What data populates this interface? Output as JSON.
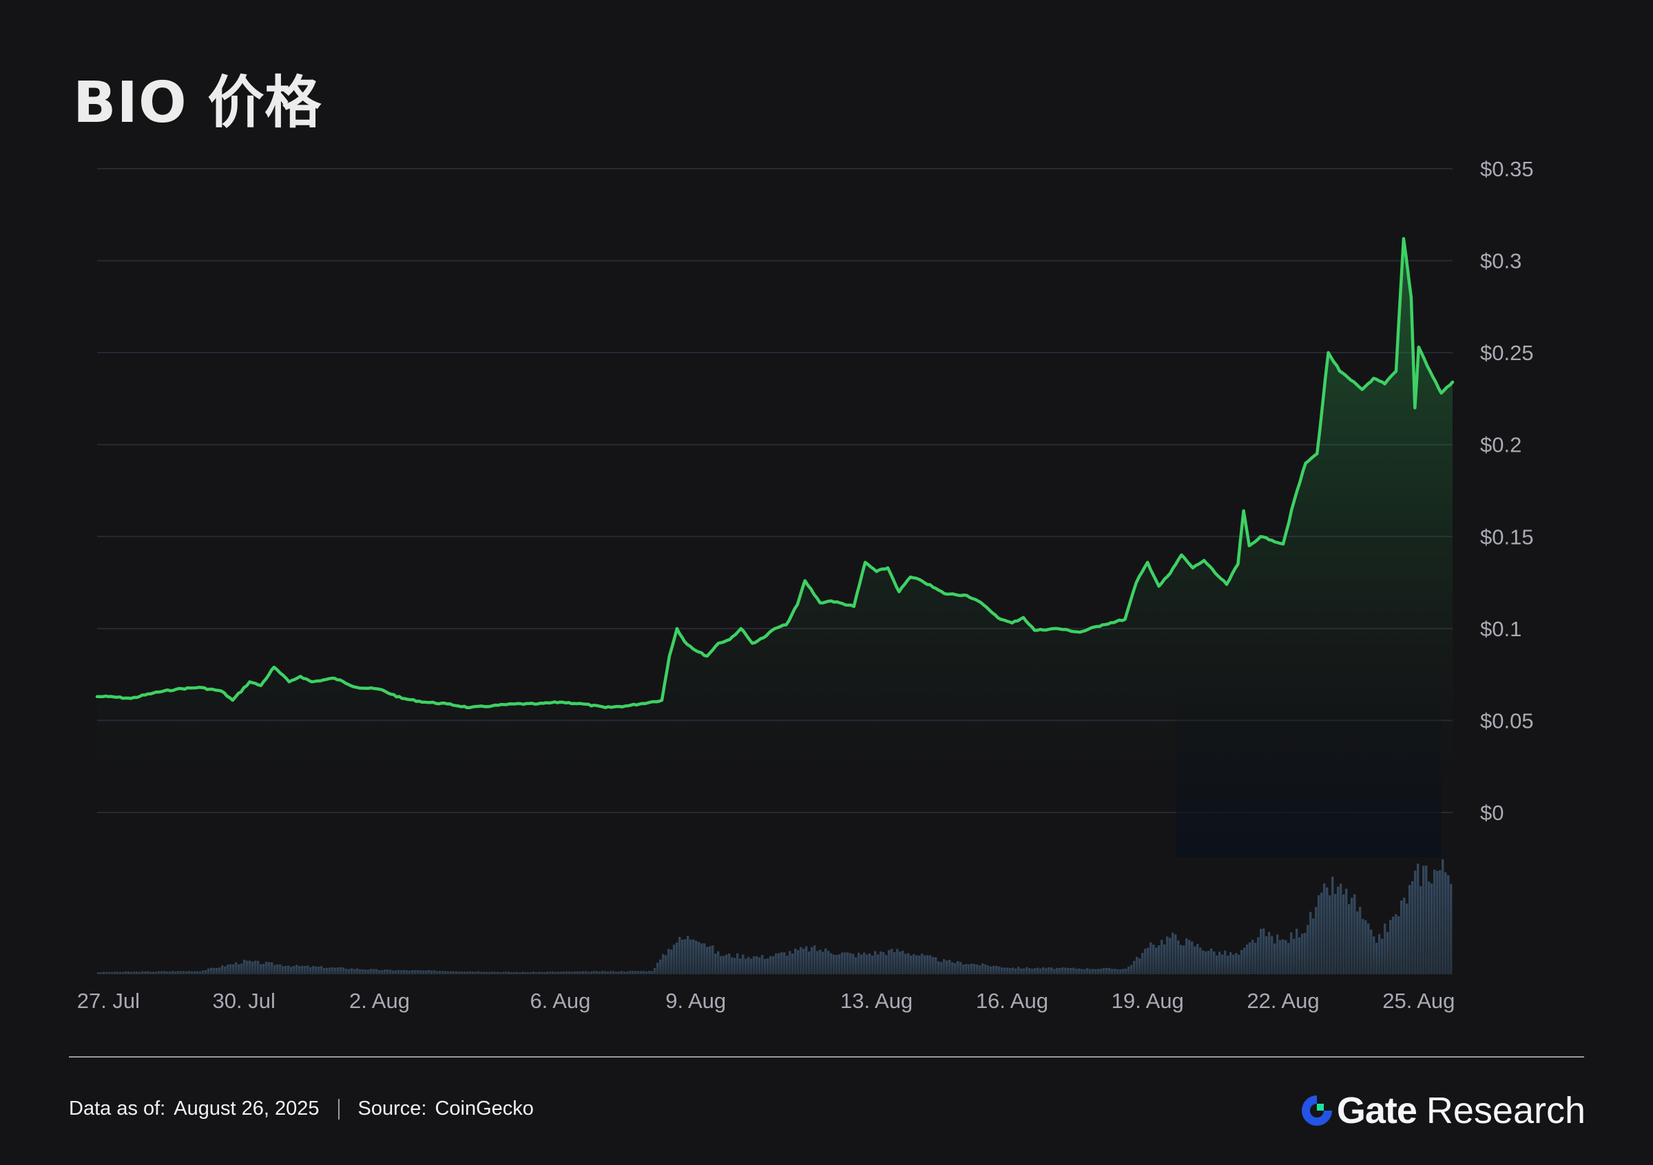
{
  "title": "BIO 价格",
  "footer": {
    "data_as_of_label": "Data as of:",
    "data_as_of_value": "August 26, 2025",
    "source_label": "Source:",
    "source_value": "CoinGecko"
  },
  "brand": {
    "name": "Gate",
    "suffix": "Research",
    "logo_icon": "gate-logo-icon",
    "colors": {
      "blue": "#2354e6",
      "green": "#17e6a1"
    }
  },
  "chart_data": {
    "type": "line",
    "title": "BIO 价格",
    "xlabel": "",
    "ylabel": "",
    "ylim": [
      0,
      0.35
    ],
    "yticks": [
      0,
      0.05,
      0.1,
      0.15,
      0.2,
      0.25,
      0.3,
      0.35
    ],
    "ytick_labels": [
      "$0",
      "$0.05",
      "$0.1",
      "$0.15",
      "$0.2",
      "$0.25",
      "$0.3",
      "$0.35"
    ],
    "xlim_days": [
      "2025-07-26T18:00",
      "2025-08-25T18:00"
    ],
    "xticks": [
      {
        "date": "2025-07-27",
        "label": "27. Jul"
      },
      {
        "date": "2025-07-30",
        "label": "30. Jul"
      },
      {
        "date": "2025-08-02",
        "label": "2. Aug"
      },
      {
        "date": "2025-08-06",
        "label": "6. Aug"
      },
      {
        "date": "2025-08-09",
        "label": "9. Aug"
      },
      {
        "date": "2025-08-13",
        "label": "13. Aug"
      },
      {
        "date": "2025-08-16",
        "label": "16. Aug"
      },
      {
        "date": "2025-08-19",
        "label": "19. Aug"
      },
      {
        "date": "2025-08-22",
        "label": "22. Aug"
      },
      {
        "date": "2025-08-25",
        "label": "25. Aug"
      }
    ],
    "grid": true,
    "colors": {
      "line": "#3ed163",
      "volume": "#2a3a4c",
      "grid": "#262a36",
      "axis_text": "#a9abb4"
    },
    "price_series": {
      "name": "",
      "points": [
        [
          "2025-07-26T18:00",
          0.063
        ],
        [
          "2025-07-27T00:00",
          0.063
        ],
        [
          "2025-07-27T12:00",
          0.062
        ],
        [
          "2025-07-28T00:00",
          0.065
        ],
        [
          "2025-07-28T12:00",
          0.067
        ],
        [
          "2025-07-29T00:00",
          0.068
        ],
        [
          "2025-07-29T12:00",
          0.066
        ],
        [
          "2025-07-29T18:00",
          0.061
        ],
        [
          "2025-07-30T03:00",
          0.071
        ],
        [
          "2025-07-30T09:00",
          0.069
        ],
        [
          "2025-07-30T16:00",
          0.079
        ],
        [
          "2025-07-31T00:00",
          0.071
        ],
        [
          "2025-07-31T06:00",
          0.074
        ],
        [
          "2025-07-31T12:00",
          0.071
        ],
        [
          "2025-08-01T00:00",
          0.073
        ],
        [
          "2025-08-01T12:00",
          0.068
        ],
        [
          "2025-08-02T00:00",
          0.067
        ],
        [
          "2025-08-02T12:00",
          0.062
        ],
        [
          "2025-08-03T00:00",
          0.06
        ],
        [
          "2025-08-03T12:00",
          0.059
        ],
        [
          "2025-08-04T00:00",
          0.057
        ],
        [
          "2025-08-04T12:00",
          0.058
        ],
        [
          "2025-08-05T00:00",
          0.059
        ],
        [
          "2025-08-05T12:00",
          0.059
        ],
        [
          "2025-08-06T00:00",
          0.06
        ],
        [
          "2025-08-06T12:00",
          0.059
        ],
        [
          "2025-08-07T00:00",
          0.057
        ],
        [
          "2025-08-07T12:00",
          0.058
        ],
        [
          "2025-08-08T00:00",
          0.06
        ],
        [
          "2025-08-08T06:00",
          0.061
        ],
        [
          "2025-08-08T10:00",
          0.085
        ],
        [
          "2025-08-08T14:00",
          0.1
        ],
        [
          "2025-08-08T18:00",
          0.093
        ],
        [
          "2025-08-09T00:00",
          0.088
        ],
        [
          "2025-08-09T06:00",
          0.085
        ],
        [
          "2025-08-09T12:00",
          0.092
        ],
        [
          "2025-08-09T18:00",
          0.094
        ],
        [
          "2025-08-10T00:00",
          0.1
        ],
        [
          "2025-08-10T06:00",
          0.092
        ],
        [
          "2025-08-10T12:00",
          0.095
        ],
        [
          "2025-08-10T18:00",
          0.1
        ],
        [
          "2025-08-11T00:00",
          0.102
        ],
        [
          "2025-08-11T06:00",
          0.113
        ],
        [
          "2025-08-11T10:00",
          0.126
        ],
        [
          "2025-08-11T18:00",
          0.114
        ],
        [
          "2025-08-12T00:00",
          0.115
        ],
        [
          "2025-08-12T12:00",
          0.112
        ],
        [
          "2025-08-12T18:00",
          0.136
        ],
        [
          "2025-08-13T00:00",
          0.131
        ],
        [
          "2025-08-13T06:00",
          0.133
        ],
        [
          "2025-08-13T12:00",
          0.12
        ],
        [
          "2025-08-13T18:00",
          0.128
        ],
        [
          "2025-08-14T00:00",
          0.126
        ],
        [
          "2025-08-14T12:00",
          0.119
        ],
        [
          "2025-08-15T00:00",
          0.118
        ],
        [
          "2025-08-15T06:00",
          0.115
        ],
        [
          "2025-08-15T12:00",
          0.11
        ],
        [
          "2025-08-15T18:00",
          0.105
        ],
        [
          "2025-08-16T00:00",
          0.103
        ],
        [
          "2025-08-16T06:00",
          0.106
        ],
        [
          "2025-08-16T12:00",
          0.099
        ],
        [
          "2025-08-17T00:00",
          0.1
        ],
        [
          "2025-08-17T12:00",
          0.098
        ],
        [
          "2025-08-18T00:00",
          0.102
        ],
        [
          "2025-08-18T12:00",
          0.105
        ],
        [
          "2025-08-18T18:00",
          0.125
        ],
        [
          "2025-08-19T00:00",
          0.136
        ],
        [
          "2025-08-19T06:00",
          0.123
        ],
        [
          "2025-08-19T12:00",
          0.13
        ],
        [
          "2025-08-19T18:00",
          0.14
        ],
        [
          "2025-08-20T00:00",
          0.133
        ],
        [
          "2025-08-20T06:00",
          0.137
        ],
        [
          "2025-08-20T12:00",
          0.13
        ],
        [
          "2025-08-20T18:00",
          0.124
        ],
        [
          "2025-08-21T00:00",
          0.135
        ],
        [
          "2025-08-21T03:00",
          0.164
        ],
        [
          "2025-08-21T06:00",
          0.145
        ],
        [
          "2025-08-21T12:00",
          0.15
        ],
        [
          "2025-08-21T18:00",
          0.148
        ],
        [
          "2025-08-22T00:00",
          0.146
        ],
        [
          "2025-08-22T06:00",
          0.17
        ],
        [
          "2025-08-22T12:00",
          0.19
        ],
        [
          "2025-08-22T18:00",
          0.195
        ],
        [
          "2025-08-23T00:00",
          0.25
        ],
        [
          "2025-08-23T06:00",
          0.24
        ],
        [
          "2025-08-23T12:00",
          0.235
        ],
        [
          "2025-08-23T18:00",
          0.23
        ],
        [
          "2025-08-24T00:00",
          0.236
        ],
        [
          "2025-08-24T06:00",
          0.233
        ],
        [
          "2025-08-24T12:00",
          0.24
        ],
        [
          "2025-08-24T16:00",
          0.312
        ],
        [
          "2025-08-24T20:00",
          0.28
        ],
        [
          "2025-08-24T22:00",
          0.22
        ],
        [
          "2025-08-25T00:00",
          0.253
        ],
        [
          "2025-08-25T06:00",
          0.24
        ],
        [
          "2025-08-25T12:00",
          0.228
        ],
        [
          "2025-08-25T18:00",
          0.234
        ]
      ]
    },
    "volume_series": {
      "name": "",
      "points": [
        [
          "2025-07-26T18:00",
          0.02
        ],
        [
          "2025-07-29T00:00",
          0.03
        ],
        [
          "2025-07-30T00:00",
          0.12
        ],
        [
          "2025-07-31T00:00",
          0.08
        ],
        [
          "2025-08-02T00:00",
          0.04
        ],
        [
          "2025-08-05T00:00",
          0.02
        ],
        [
          "2025-08-08T00:00",
          0.03
        ],
        [
          "2025-08-08T12:00",
          0.3
        ],
        [
          "2025-08-09T00:00",
          0.36
        ],
        [
          "2025-08-09T12:00",
          0.18
        ],
        [
          "2025-08-10T12:00",
          0.16
        ],
        [
          "2025-08-11T12:00",
          0.24
        ],
        [
          "2025-08-12T12:00",
          0.18
        ],
        [
          "2025-08-13T12:00",
          0.22
        ],
        [
          "2025-08-14T12:00",
          0.12
        ],
        [
          "2025-08-16T00:00",
          0.06
        ],
        [
          "2025-08-18T12:00",
          0.05
        ],
        [
          "2025-08-19T00:00",
          0.25
        ],
        [
          "2025-08-19T12:00",
          0.35
        ],
        [
          "2025-08-20T12:00",
          0.2
        ],
        [
          "2025-08-21T00:00",
          0.18
        ],
        [
          "2025-08-21T12:00",
          0.38
        ],
        [
          "2025-08-22T00:00",
          0.3
        ],
        [
          "2025-08-22T12:00",
          0.45
        ],
        [
          "2025-08-23T00:00",
          0.82
        ],
        [
          "2025-08-23T12:00",
          0.7
        ],
        [
          "2025-08-24T00:00",
          0.3
        ],
        [
          "2025-08-24T12:00",
          0.55
        ],
        [
          "2025-08-25T00:00",
          0.95
        ],
        [
          "2025-08-25T18:00",
          0.98
        ]
      ]
    }
  }
}
